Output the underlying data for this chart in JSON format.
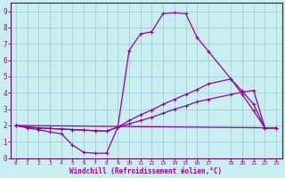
{
  "xlabel": "Windchill (Refroidissement éolien,°C)",
  "bg_color": "#c8eef0",
  "line_color": "#990099",
  "grid_color": "#a0d0d8",
  "axis_color": "#660066",
  "xlim": [
    -0.5,
    23.5
  ],
  "ylim": [
    0,
    9.5
  ],
  "xtick_vals": [
    0,
    1,
    2,
    3,
    4,
    5,
    6,
    7,
    8,
    9,
    10,
    11,
    12,
    13,
    14,
    15,
    16,
    17,
    19,
    20,
    21,
    22,
    23
  ],
  "ytick_vals": [
    0,
    1,
    2,
    3,
    4,
    5,
    6,
    7,
    8,
    9
  ],
  "line1_x": [
    0,
    1,
    2,
    3,
    4,
    5,
    6,
    7,
    8,
    9,
    10,
    11,
    12,
    13,
    14,
    15,
    16,
    17,
    19,
    20,
    21,
    22,
    23
  ],
  "line1_y": [
    2.0,
    1.85,
    1.75,
    1.6,
    1.5,
    0.8,
    0.35,
    0.3,
    0.3,
    1.9,
    6.6,
    7.6,
    7.75,
    8.85,
    8.9,
    8.85,
    7.4,
    6.55,
    4.85,
    3.9,
    2.9,
    1.85,
    1.85
  ],
  "line2_x": [
    0,
    1,
    2,
    3,
    4,
    5,
    6,
    7,
    8,
    9,
    10,
    11,
    12,
    13,
    14,
    15,
    16,
    17,
    19,
    20,
    21,
    22,
    23
  ],
  "line2_y": [
    2.0,
    1.9,
    1.85,
    1.82,
    1.78,
    1.75,
    1.72,
    1.68,
    1.65,
    1.9,
    2.1,
    2.3,
    2.5,
    2.75,
    3.0,
    3.2,
    3.45,
    3.6,
    3.9,
    4.05,
    4.15,
    1.85,
    1.85
  ],
  "line3_x": [
    0,
    23
  ],
  "line3_y": [
    2.0,
    1.85
  ],
  "line4_x": [
    0,
    1,
    2,
    3,
    4,
    5,
    6,
    7,
    8,
    9,
    10,
    11,
    12,
    13,
    14,
    15,
    16,
    17,
    19,
    20,
    21,
    22,
    23
  ],
  "line4_y": [
    2.0,
    1.9,
    1.85,
    1.82,
    1.78,
    1.75,
    1.72,
    1.68,
    1.65,
    1.9,
    2.3,
    2.65,
    2.95,
    3.3,
    3.6,
    3.9,
    4.2,
    4.55,
    4.85,
    4.1,
    3.3,
    1.85,
    1.85
  ]
}
